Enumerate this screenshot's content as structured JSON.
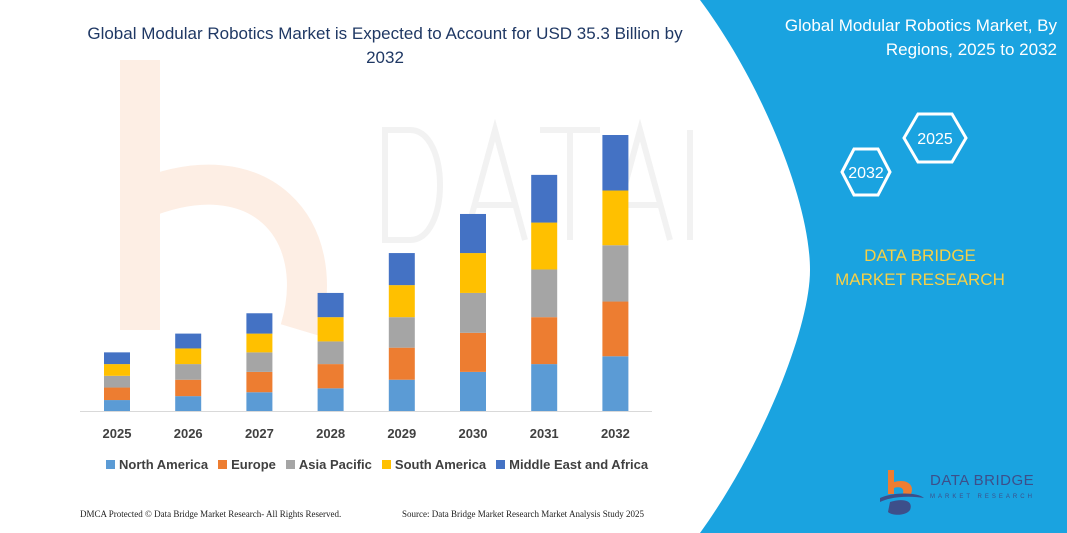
{
  "title": "Global Modular Robotics Market is Expected to Account for USD 35.3 Billion by 2032",
  "panel": {
    "title": "Global Modular Robotics Market, By Regions, 2025 to 2032",
    "hex_labels": [
      "2025",
      "2032"
    ],
    "brand": "DATA BRIDGE MARKET RESEARCH",
    "logo_text": "DATA BRIDGE",
    "logo_sub": "MARKET RESEARCH",
    "background_color": "#1aa3e0",
    "brand_color": "#f7d046"
  },
  "watermark": "DATA BRIDGE",
  "footer": {
    "left": "DMCA Protected © Data Bridge Market Research- All Rights Reserved.",
    "right": "Source: Data Bridge Market Research Market Analysis Study 2025"
  },
  "chart_data": {
    "type": "bar",
    "stacked": true,
    "categories": [
      "2025",
      "2026",
      "2027",
      "2028",
      "2029",
      "2030",
      "2031",
      "2032"
    ],
    "series": [
      {
        "name": "North America",
        "color": "#5b9bd5",
        "values": [
          1.4,
          1.9,
          2.4,
          2.9,
          4.0,
          5.0,
          6.0,
          7.0
        ]
      },
      {
        "name": "Europe",
        "color": "#ed7d31",
        "values": [
          1.6,
          2.1,
          2.6,
          3.1,
          4.1,
          5.0,
          6.0,
          7.0
        ]
      },
      {
        "name": "Asia Pacific",
        "color": "#a5a5a5",
        "values": [
          1.5,
          2.0,
          2.5,
          2.9,
          3.9,
          5.1,
          6.1,
          7.2
        ]
      },
      {
        "name": "South America",
        "color": "#ffc000",
        "values": [
          1.5,
          2.0,
          2.4,
          3.1,
          4.1,
          5.1,
          6.0,
          7.0
        ]
      },
      {
        "name": "Middle East and Africa",
        "color": "#4472c4",
        "values": [
          1.5,
          1.9,
          2.6,
          3.1,
          4.1,
          5.0,
          6.1,
          7.1
        ]
      }
    ],
    "ylim": [
      0,
      35.3
    ],
    "grid": false,
    "legend": "bottom"
  }
}
